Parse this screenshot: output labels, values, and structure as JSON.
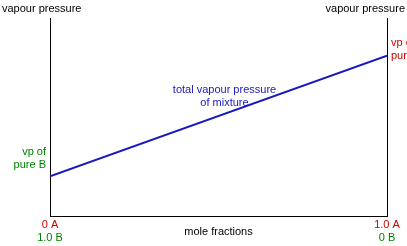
{
  "chart_data": {
    "type": "line",
    "x_label": "mole fractions",
    "y_label": "vapour pressure",
    "y2_label": "vapour pressure",
    "x": [
      0,
      1
    ],
    "series": [
      {
        "name": "total vapour pressure\nof mixture",
        "color": "#1818c0",
        "values": [
          20,
          81
        ]
      }
    ],
    "xlim": [
      0,
      1
    ],
    "xticks": [
      {
        "value": 0,
        "label": "0 A\n1.0 B"
      },
      {
        "value": 1,
        "label": "1.0 A\n0 B"
      }
    ],
    "ylim": [
      0,
      100
    ],
    "yticks": [],
    "tick_labels": "x",
    "grid": false,
    "annotations": [
      {
        "text": "vp of\npure B",
        "color": "#008000",
        "x": 0,
        "y": 20
      },
      {
        "text": "vp of\npure A",
        "color": "#cc0000",
        "x": 1,
        "y": 81
      }
    ]
  }
}
